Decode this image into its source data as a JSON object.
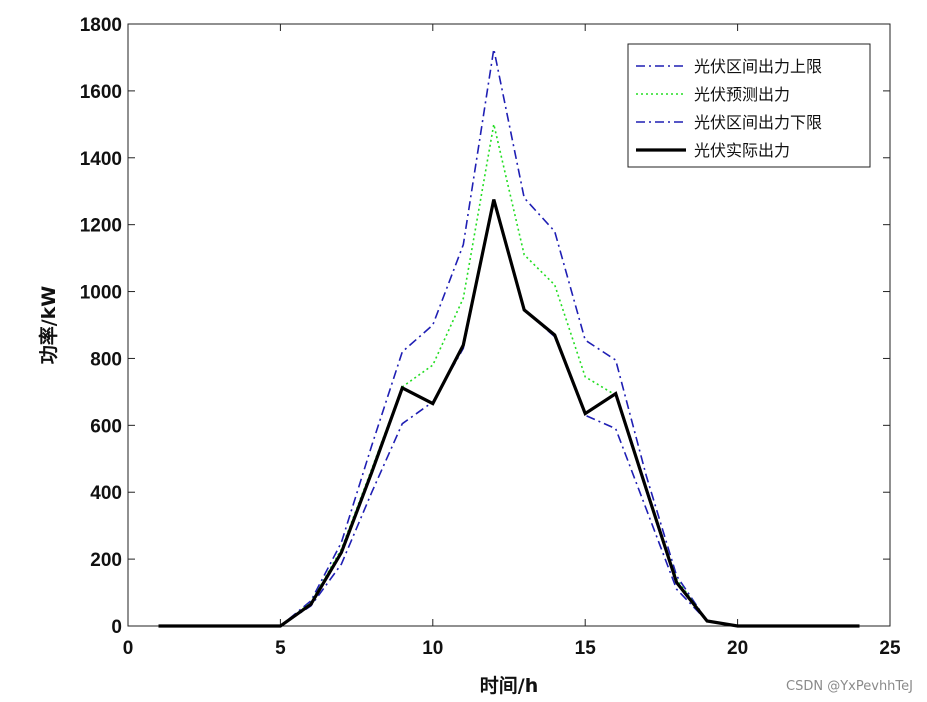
{
  "chart_data": {
    "type": "line",
    "title": "",
    "xlabel": "时间/h",
    "ylabel": "功率/kW",
    "xlim": [
      0,
      25
    ],
    "ylim": [
      0,
      1800
    ],
    "xticks": [
      0,
      5,
      10,
      15,
      20,
      25
    ],
    "yticks": [
      0,
      200,
      400,
      600,
      800,
      1000,
      1200,
      1400,
      1600,
      1800
    ],
    "grid": false,
    "legend_position": "top-right",
    "x": [
      1,
      2,
      3,
      4,
      5,
      6,
      7,
      8,
      9,
      10,
      11,
      12,
      13,
      14,
      15,
      16,
      17,
      18,
      19,
      20,
      21,
      22,
      23,
      24
    ],
    "series": [
      {
        "name": "光伏区间出力上限",
        "style": "dashdot",
        "color": "#1f1fb4",
        "values": [
          0,
          0,
          0,
          0,
          0,
          75,
          250,
          540,
          820,
          900,
          1140,
          1725,
          1280,
          1180,
          855,
          795,
          450,
          150,
          15,
          0,
          0,
          0,
          0,
          0
        ]
      },
      {
        "name": "光伏预测出力",
        "style": "dotted",
        "color": "#22dd22",
        "values": [
          0,
          0,
          0,
          0,
          0,
          70,
          230,
          470,
          715,
          780,
          980,
          1500,
          1110,
          1020,
          745,
          690,
          410,
          140,
          15,
          0,
          0,
          0,
          0,
          0
        ]
      },
      {
        "name": "光伏区间出力下限",
        "style": "dashdot",
        "color": "#1f1fb4",
        "values": [
          0,
          0,
          0,
          0,
          0,
          60,
          185,
          400,
          605,
          670,
          830,
          1275,
          945,
          865,
          630,
          590,
          350,
          110,
          15,
          0,
          0,
          0,
          0,
          0
        ]
      },
      {
        "name": "光伏实际出力",
        "style": "solid",
        "color": "#000000",
        "values": [
          0,
          0,
          0,
          0,
          0,
          65,
          220,
          460,
          712,
          665,
          840,
          1275,
          945,
          870,
          635,
          695,
          410,
          130,
          15,
          0,
          0,
          0,
          0,
          0
        ]
      }
    ]
  },
  "watermark": "CSDN @YxPevhhTeJ"
}
